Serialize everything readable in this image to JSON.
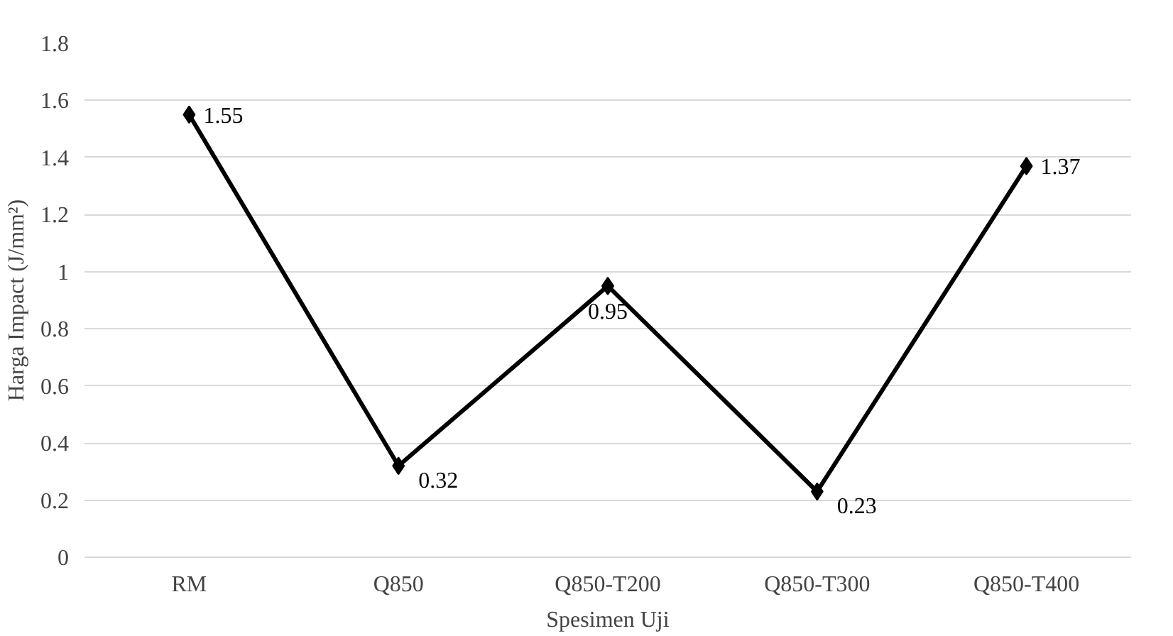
{
  "chart_data": {
    "type": "line",
    "xlabel": "Spesimen Uji",
    "ylabel": "Harga Impact (J/mm²)",
    "categories": [
      "RM",
      "Q850",
      "Q850-T200",
      "Q850-T300",
      "Q850-T400"
    ],
    "series": [
      {
        "color": "#000000",
        "values": [
          1.55,
          0.32,
          0.95,
          0.23,
          1.37
        ]
      }
    ],
    "ylim": [
      0,
      1.8
    ],
    "yticks": [
      0,
      0.2,
      0.4,
      0.6,
      0.8,
      1,
      1.2,
      1.4,
      1.6,
      1.8
    ],
    "grid": "y",
    "marker": "diamond",
    "line_style": "solid",
    "data_labels": true
  }
}
